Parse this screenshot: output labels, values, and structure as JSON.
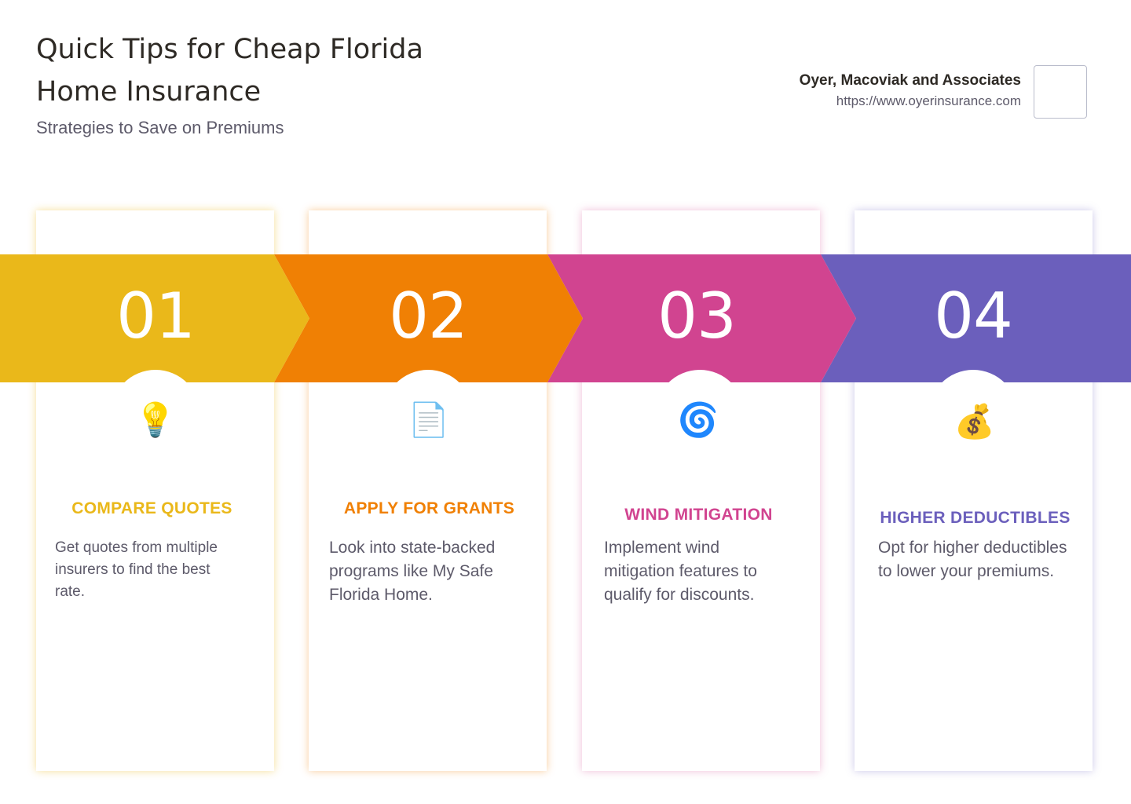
{
  "header": {
    "title": "Quick Tips for Cheap Florida Home Insurance",
    "subtitle": "Strategies to Save on Premiums"
  },
  "brand": {
    "name": "Oyer, Macoviak and Associates",
    "url": "https://www.oyerinsurance.com"
  },
  "steps": [
    {
      "number": "01",
      "icon": "lightbulb-icon",
      "icon_glyph": "💡",
      "heading": "COMPARE QUOTES",
      "text": "Get quotes from multiple insurers to find the best rate.",
      "color": "#EAB81A"
    },
    {
      "number": "02",
      "icon": "document-icon",
      "icon_glyph": "📄",
      "heading": "APPLY FOR GRANTS",
      "text": "Look into state-backed programs like My Safe Florida Home.",
      "color": "#F08004"
    },
    {
      "number": "03",
      "icon": "cyclone-icon",
      "icon_glyph": "🌀",
      "heading": "WIND MITIGATION",
      "text": "Implement wind mitigation features to qualify for discounts.",
      "color": "#D14490"
    },
    {
      "number": "04",
      "icon": "money-bag-icon",
      "icon_glyph": "💰",
      "heading": "HIGHER DEDUCTIBLES",
      "text": "Opt for higher deductibles to lower your premiums.",
      "color": "#6B5FBC"
    }
  ]
}
